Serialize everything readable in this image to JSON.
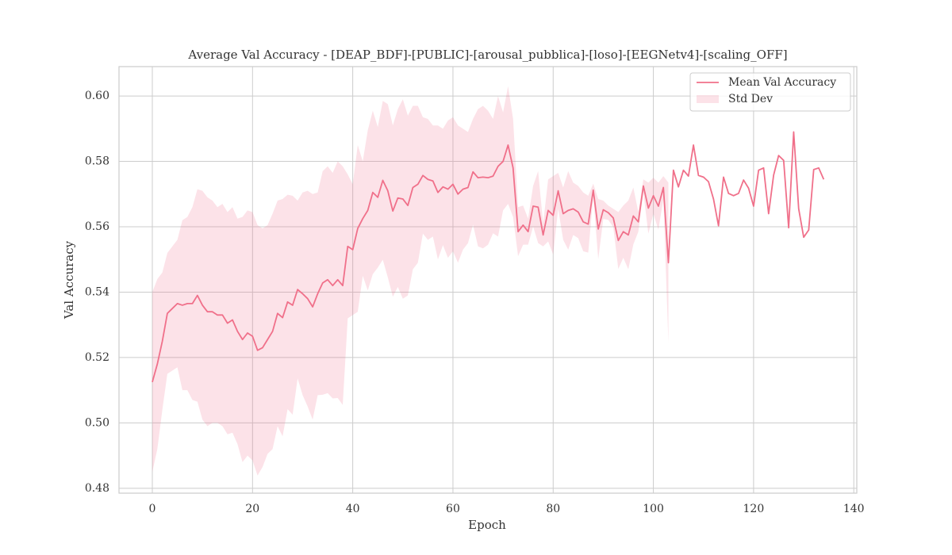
{
  "chart_data": {
    "type": "line",
    "title": "Average Val Accuracy - [DEAP_BDF]-[PUBLIC]-[arousal_pubblica]-[loso]-[EEGNetv4]-[scaling_OFF]",
    "x_label": "Epoch",
    "y_label": "Val Accuracy",
    "x": [
      0,
      1,
      2,
      3,
      4,
      5,
      6,
      7,
      8,
      9,
      10,
      11,
      12,
      13,
      14,
      15,
      16,
      17,
      18,
      19,
      20,
      21,
      22,
      23,
      24,
      25,
      26,
      27,
      28,
      29,
      30,
      31,
      32,
      33,
      34,
      35,
      36,
      37,
      38,
      39,
      40,
      41,
      42,
      43,
      44,
      45,
      46,
      47,
      48,
      49,
      50,
      51,
      52,
      53,
      54,
      55,
      56,
      57,
      58,
      59,
      60,
      61,
      62,
      63,
      64,
      65,
      66,
      67,
      68,
      69,
      70,
      71,
      72,
      73,
      74,
      75,
      76,
      77,
      78,
      79,
      80,
      81,
      82,
      83,
      84,
      85,
      86,
      87,
      88,
      89,
      90,
      91,
      92,
      93,
      94,
      95,
      96,
      97,
      98,
      99,
      100,
      101,
      102,
      103,
      104,
      105,
      106,
      107,
      108,
      109,
      110,
      111,
      112,
      113,
      114,
      115,
      116,
      117,
      118,
      119,
      120,
      121,
      122,
      123,
      124,
      125,
      126,
      127,
      128,
      129,
      130,
      131,
      132,
      133,
      134
    ],
    "series": [
      {
        "name": "Mean Val Accuracy",
        "color": "#f0708a",
        "values": [
          0.5125,
          0.518,
          0.525,
          0.5335,
          0.535,
          0.5365,
          0.536,
          0.5365,
          0.5365,
          0.539,
          0.536,
          0.534,
          0.534,
          0.533,
          0.533,
          0.5305,
          0.5315,
          0.528,
          0.5255,
          0.5275,
          0.5265,
          0.5222,
          0.523,
          0.5255,
          0.528,
          0.5335,
          0.5322,
          0.537,
          0.536,
          0.5408,
          0.5395,
          0.538,
          0.5355,
          0.5395,
          0.5428,
          0.5438,
          0.542,
          0.5438,
          0.542,
          0.554,
          0.553,
          0.5595,
          0.5625,
          0.565,
          0.5705,
          0.569,
          0.5742,
          0.571,
          0.5648,
          0.5688,
          0.5685,
          0.5665,
          0.572,
          0.573,
          0.5757,
          0.5745,
          0.574,
          0.5705,
          0.5722,
          0.5715,
          0.573,
          0.57,
          0.5715,
          0.572,
          0.5768,
          0.575,
          0.5752,
          0.575,
          0.5755,
          0.5785,
          0.58,
          0.585,
          0.578,
          0.5585,
          0.5605,
          0.5585,
          0.5663,
          0.566,
          0.5575,
          0.565,
          0.5635,
          0.571,
          0.564,
          0.565,
          0.5655,
          0.5645,
          0.5615,
          0.5608,
          0.5712,
          0.5593,
          0.5652,
          0.5643,
          0.5627,
          0.5558,
          0.5585,
          0.5575,
          0.5633,
          0.5615,
          0.5725,
          0.5657,
          0.5695,
          0.5663,
          0.572,
          0.549,
          0.5773,
          0.5722,
          0.5773,
          0.5755,
          0.585,
          0.5757,
          0.5752,
          0.5738,
          0.5685,
          0.5603,
          0.5752,
          0.5702,
          0.5695,
          0.5702,
          0.5743,
          0.5718,
          0.5663,
          0.5773,
          0.578,
          0.564,
          0.5758,
          0.5818,
          0.5803,
          0.5597,
          0.589,
          0.5655,
          0.5568,
          0.559,
          0.5775,
          0.578,
          0.5745
        ]
      }
    ],
    "std_band": {
      "name": "Std Dev",
      "color": "#f0708a",
      "opacity": 0.2,
      "values": [
        0.0275,
        0.026,
        0.021,
        0.0185,
        0.019,
        0.0195,
        0.026,
        0.0265,
        0.0295,
        0.0325,
        0.035,
        0.035,
        0.034,
        0.033,
        0.034,
        0.034,
        0.0345,
        0.0345,
        0.0375,
        0.0375,
        0.038,
        0.0383,
        0.0365,
        0.035,
        0.036,
        0.0345,
        0.0363,
        0.0328,
        0.0335,
        0.0272,
        0.031,
        0.033,
        0.0345,
        0.031,
        0.0342,
        0.0347,
        0.0345,
        0.0362,
        0.0365,
        0.022,
        0.02,
        0.0255,
        0.0175,
        0.0245,
        0.025,
        0.0215,
        0.0243,
        0.0265,
        0.0262,
        0.0272,
        0.0305,
        0.0275,
        0.025,
        0.024,
        0.0178,
        0.0185,
        0.017,
        0.0205,
        0.0178,
        0.021,
        0.0205,
        0.021,
        0.0185,
        0.017,
        0.0162,
        0.021,
        0.0218,
        0.0205,
        0.0175,
        0.0215,
        0.015,
        0.018,
        0.015,
        0.0075,
        0.006,
        0.004,
        0.0062,
        0.011,
        0.0035,
        0.0095,
        0.012,
        0.0055,
        0.008,
        0.012,
        0.008,
        0.008,
        0.009,
        0.0087,
        0.002,
        0.0092,
        0.0028,
        0.0022,
        0.0028,
        0.0087,
        0.008,
        0.0105,
        0.0087,
        0.003,
        0.002,
        0.0078,
        0.0055,
        0.0072,
        0.0035,
        0.0245,
        null,
        null,
        null,
        null,
        null,
        null,
        null,
        null,
        null,
        null,
        null,
        null,
        null,
        null,
        null,
        null,
        null,
        null,
        null,
        null,
        null,
        null,
        null,
        null,
        null,
        null,
        null,
        null,
        null,
        null,
        null
      ]
    },
    "xlim": [
      -6.65,
      140.6
    ],
    "ylim": [
      0.4785,
      0.609
    ],
    "xticks": [
      0,
      20,
      40,
      60,
      80,
      100,
      120,
      140
    ],
    "yticks": [
      0.48,
      {
        "value": 0.5,
        "label": "0.50"
      },
      0.52,
      0.54,
      0.56,
      0.58,
      {
        "value": 0.6,
        "label": "0.60"
      }
    ],
    "grid": true,
    "legend": "upper right"
  }
}
